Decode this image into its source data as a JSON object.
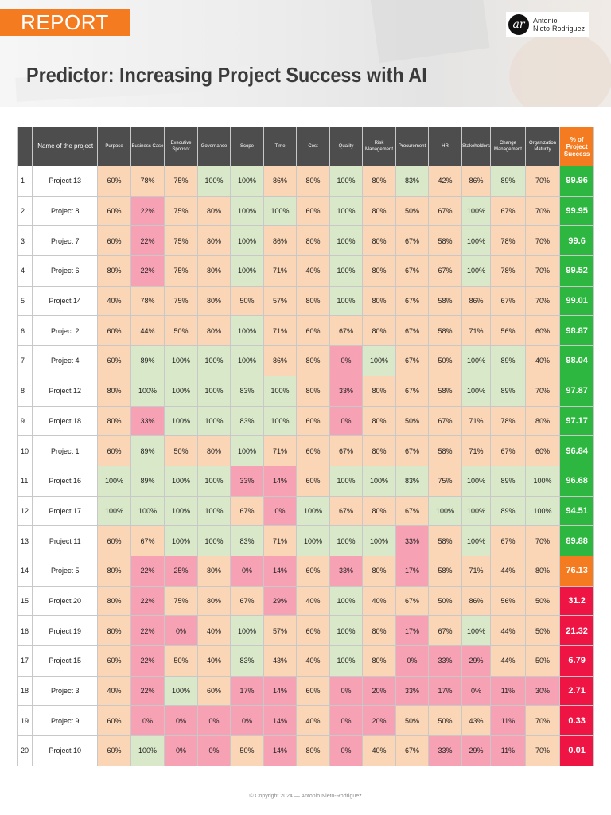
{
  "header": {
    "tag": "REPORT",
    "brand_logo": "ar",
    "brand_name_line1": "Antonio",
    "brand_name_line2": "Nieto-Rodriguez",
    "title": "Predictor: Increasing Project Success with AI"
  },
  "columns": {
    "index": "",
    "name": "Name of the project",
    "criteria": [
      "Purpose",
      "Business Case",
      "Executive Sponsor",
      "Governance",
      "Scope",
      "Time",
      "Cost",
      "Quality",
      "Risk Management",
      "Procurement",
      "HR",
      "Stakeholders",
      "Change Management",
      "Organization Maturity"
    ],
    "success": "% of Project Success"
  },
  "colors": {
    "header_bg": "#4d4d4d",
    "report_tag_bg": "#f47b20",
    "cell_green": "#d9e8c8",
    "cell_orange": "#fad6b6",
    "cell_pink": "#f7a2b4",
    "success_green": "#2db640",
    "success_orange": "#f47b20",
    "success_red": "#ee1443"
  },
  "rows": [
    {
      "idx": "1",
      "name": "Project 13",
      "cells": [
        [
          "60%",
          "o"
        ],
        [
          "78%",
          "o"
        ],
        [
          "75%",
          "o"
        ],
        [
          "100%",
          "g"
        ],
        [
          "100%",
          "g"
        ],
        [
          "86%",
          "o"
        ],
        [
          "80%",
          "o"
        ],
        [
          "100%",
          "g"
        ],
        [
          "80%",
          "o"
        ],
        [
          "83%",
          "g"
        ],
        [
          "42%",
          "o"
        ],
        [
          "86%",
          "o"
        ],
        [
          "89%",
          "g"
        ],
        [
          "70%",
          "o"
        ]
      ],
      "pct": "99.96",
      "pct_c": "g"
    },
    {
      "idx": "2",
      "name": "Project 8",
      "cells": [
        [
          "60%",
          "o"
        ],
        [
          "22%",
          "p"
        ],
        [
          "75%",
          "o"
        ],
        [
          "80%",
          "o"
        ],
        [
          "100%",
          "g"
        ],
        [
          "100%",
          "g"
        ],
        [
          "60%",
          "o"
        ],
        [
          "100%",
          "g"
        ],
        [
          "80%",
          "o"
        ],
        [
          "50%",
          "o"
        ],
        [
          "67%",
          "o"
        ],
        [
          "100%",
          "g"
        ],
        [
          "67%",
          "o"
        ],
        [
          "70%",
          "o"
        ]
      ],
      "pct": "99.95",
      "pct_c": "g"
    },
    {
      "idx": "3",
      "name": "Project 7",
      "cells": [
        [
          "60%",
          "o"
        ],
        [
          "22%",
          "p"
        ],
        [
          "75%",
          "o"
        ],
        [
          "80%",
          "o"
        ],
        [
          "100%",
          "g"
        ],
        [
          "86%",
          "o"
        ],
        [
          "80%",
          "o"
        ],
        [
          "100%",
          "g"
        ],
        [
          "80%",
          "o"
        ],
        [
          "67%",
          "o"
        ],
        [
          "58%",
          "o"
        ],
        [
          "100%",
          "g"
        ],
        [
          "78%",
          "o"
        ],
        [
          "70%",
          "o"
        ]
      ],
      "pct": "99.6",
      "pct_c": "g"
    },
    {
      "idx": "4",
      "name": "Project 6",
      "cells": [
        [
          "80%",
          "o"
        ],
        [
          "22%",
          "p"
        ],
        [
          "75%",
          "o"
        ],
        [
          "80%",
          "o"
        ],
        [
          "100%",
          "g"
        ],
        [
          "71%",
          "o"
        ],
        [
          "40%",
          "o"
        ],
        [
          "100%",
          "g"
        ],
        [
          "80%",
          "o"
        ],
        [
          "67%",
          "o"
        ],
        [
          "67%",
          "o"
        ],
        [
          "100%",
          "g"
        ],
        [
          "78%",
          "o"
        ],
        [
          "70%",
          "o"
        ]
      ],
      "pct": "99.52",
      "pct_c": "g"
    },
    {
      "idx": "5",
      "name": "Project 14",
      "cells": [
        [
          "40%",
          "o"
        ],
        [
          "78%",
          "o"
        ],
        [
          "75%",
          "o"
        ],
        [
          "80%",
          "o"
        ],
        [
          "50%",
          "o"
        ],
        [
          "57%",
          "o"
        ],
        [
          "80%",
          "o"
        ],
        [
          "100%",
          "g"
        ],
        [
          "80%",
          "o"
        ],
        [
          "67%",
          "o"
        ],
        [
          "58%",
          "o"
        ],
        [
          "86%",
          "o"
        ],
        [
          "67%",
          "o"
        ],
        [
          "70%",
          "o"
        ]
      ],
      "pct": "99.01",
      "pct_c": "g"
    },
    {
      "idx": "6",
      "name": "Project 2",
      "cells": [
        [
          "60%",
          "o"
        ],
        [
          "44%",
          "o"
        ],
        [
          "50%",
          "o"
        ],
        [
          "80%",
          "o"
        ],
        [
          "100%",
          "g"
        ],
        [
          "71%",
          "o"
        ],
        [
          "60%",
          "o"
        ],
        [
          "67%",
          "o"
        ],
        [
          "80%",
          "o"
        ],
        [
          "67%",
          "o"
        ],
        [
          "58%",
          "o"
        ],
        [
          "71%",
          "o"
        ],
        [
          "56%",
          "o"
        ],
        [
          "60%",
          "o"
        ]
      ],
      "pct": "98.87",
      "pct_c": "g"
    },
    {
      "idx": "7",
      "name": "Project 4",
      "cells": [
        [
          "60%",
          "o"
        ],
        [
          "89%",
          "g"
        ],
        [
          "100%",
          "g"
        ],
        [
          "100%",
          "g"
        ],
        [
          "100%",
          "g"
        ],
        [
          "86%",
          "o"
        ],
        [
          "80%",
          "o"
        ],
        [
          "0%",
          "p"
        ],
        [
          "100%",
          "g"
        ],
        [
          "67%",
          "o"
        ],
        [
          "50%",
          "o"
        ],
        [
          "100%",
          "g"
        ],
        [
          "89%",
          "g"
        ],
        [
          "40%",
          "o"
        ]
      ],
      "pct": "98.04",
      "pct_c": "g"
    },
    {
      "idx": "8",
      "name": "Project 12",
      "cells": [
        [
          "80%",
          "o"
        ],
        [
          "100%",
          "g"
        ],
        [
          "100%",
          "g"
        ],
        [
          "100%",
          "g"
        ],
        [
          "83%",
          "g"
        ],
        [
          "100%",
          "g"
        ],
        [
          "80%",
          "o"
        ],
        [
          "33%",
          "p"
        ],
        [
          "80%",
          "o"
        ],
        [
          "67%",
          "o"
        ],
        [
          "58%",
          "o"
        ],
        [
          "100%",
          "g"
        ],
        [
          "89%",
          "g"
        ],
        [
          "70%",
          "o"
        ]
      ],
      "pct": "97.87",
      "pct_c": "g"
    },
    {
      "idx": "9",
      "name": "Project 18",
      "cells": [
        [
          "80%",
          "o"
        ],
        [
          "33%",
          "p"
        ],
        [
          "100%",
          "g"
        ],
        [
          "100%",
          "g"
        ],
        [
          "83%",
          "g"
        ],
        [
          "100%",
          "g"
        ],
        [
          "60%",
          "o"
        ],
        [
          "0%",
          "p"
        ],
        [
          "80%",
          "o"
        ],
        [
          "50%",
          "o"
        ],
        [
          "67%",
          "o"
        ],
        [
          "71%",
          "o"
        ],
        [
          "78%",
          "o"
        ],
        [
          "80%",
          "o"
        ]
      ],
      "pct": "97.17",
      "pct_c": "g"
    },
    {
      "idx": "10",
      "name": "Project 1",
      "cells": [
        [
          "60%",
          "o"
        ],
        [
          "89%",
          "g"
        ],
        [
          "50%",
          "o"
        ],
        [
          "80%",
          "o"
        ],
        [
          "100%",
          "g"
        ],
        [
          "71%",
          "o"
        ],
        [
          "60%",
          "o"
        ],
        [
          "67%",
          "o"
        ],
        [
          "80%",
          "o"
        ],
        [
          "67%",
          "o"
        ],
        [
          "58%",
          "o"
        ],
        [
          "71%",
          "o"
        ],
        [
          "67%",
          "o"
        ],
        [
          "60%",
          "o"
        ]
      ],
      "pct": "96.84",
      "pct_c": "g"
    },
    {
      "idx": "11",
      "name": "Project 16",
      "cells": [
        [
          "100%",
          "g"
        ],
        [
          "89%",
          "g"
        ],
        [
          "100%",
          "g"
        ],
        [
          "100%",
          "g"
        ],
        [
          "33%",
          "p"
        ],
        [
          "14%",
          "p"
        ],
        [
          "60%",
          "o"
        ],
        [
          "100%",
          "g"
        ],
        [
          "100%",
          "g"
        ],
        [
          "83%",
          "g"
        ],
        [
          "75%",
          "o"
        ],
        [
          "100%",
          "g"
        ],
        [
          "89%",
          "g"
        ],
        [
          "100%",
          "g"
        ]
      ],
      "pct": "96.68",
      "pct_c": "g"
    },
    {
      "idx": "12",
      "name": "Project 17",
      "cells": [
        [
          "100%",
          "g"
        ],
        [
          "100%",
          "g"
        ],
        [
          "100%",
          "g"
        ],
        [
          "100%",
          "g"
        ],
        [
          "67%",
          "o"
        ],
        [
          "0%",
          "p"
        ],
        [
          "100%",
          "g"
        ],
        [
          "67%",
          "o"
        ],
        [
          "80%",
          "o"
        ],
        [
          "67%",
          "o"
        ],
        [
          "100%",
          "g"
        ],
        [
          "100%",
          "g"
        ],
        [
          "89%",
          "g"
        ],
        [
          "100%",
          "g"
        ]
      ],
      "pct": "94.51",
      "pct_c": "g"
    },
    {
      "idx": "13",
      "name": "Project 11",
      "cells": [
        [
          "60%",
          "o"
        ],
        [
          "67%",
          "o"
        ],
        [
          "100%",
          "g"
        ],
        [
          "100%",
          "g"
        ],
        [
          "83%",
          "g"
        ],
        [
          "71%",
          "o"
        ],
        [
          "100%",
          "g"
        ],
        [
          "100%",
          "g"
        ],
        [
          "100%",
          "g"
        ],
        [
          "33%",
          "p"
        ],
        [
          "58%",
          "o"
        ],
        [
          "100%",
          "g"
        ],
        [
          "67%",
          "o"
        ],
        [
          "70%",
          "o"
        ]
      ],
      "pct": "89.88",
      "pct_c": "g"
    },
    {
      "idx": "14",
      "name": "Project 5",
      "cells": [
        [
          "80%",
          "o"
        ],
        [
          "22%",
          "p"
        ],
        [
          "25%",
          "p"
        ],
        [
          "80%",
          "o"
        ],
        [
          "0%",
          "p"
        ],
        [
          "14%",
          "p"
        ],
        [
          "60%",
          "o"
        ],
        [
          "33%",
          "p"
        ],
        [
          "80%",
          "o"
        ],
        [
          "17%",
          "p"
        ],
        [
          "58%",
          "o"
        ],
        [
          "71%",
          "o"
        ],
        [
          "44%",
          "o"
        ],
        [
          "80%",
          "o"
        ]
      ],
      "pct": "76.13",
      "pct_c": "o"
    },
    {
      "idx": "15",
      "name": "Project 20",
      "cells": [
        [
          "80%",
          "o"
        ],
        [
          "22%",
          "p"
        ],
        [
          "75%",
          "o"
        ],
        [
          "80%",
          "o"
        ],
        [
          "67%",
          "o"
        ],
        [
          "29%",
          "p"
        ],
        [
          "40%",
          "o"
        ],
        [
          "100%",
          "g"
        ],
        [
          "40%",
          "o"
        ],
        [
          "67%",
          "o"
        ],
        [
          "50%",
          "o"
        ],
        [
          "86%",
          "o"
        ],
        [
          "56%",
          "o"
        ],
        [
          "50%",
          "o"
        ]
      ],
      "pct": "31.2",
      "pct_c": "r"
    },
    {
      "idx": "16",
      "name": "Project 19",
      "cells": [
        [
          "80%",
          "o"
        ],
        [
          "22%",
          "p"
        ],
        [
          "0%",
          "p"
        ],
        [
          "40%",
          "o"
        ],
        [
          "100%",
          "g"
        ],
        [
          "57%",
          "o"
        ],
        [
          "60%",
          "o"
        ],
        [
          "100%",
          "g"
        ],
        [
          "80%",
          "o"
        ],
        [
          "17%",
          "p"
        ],
        [
          "67%",
          "o"
        ],
        [
          "100%",
          "g"
        ],
        [
          "44%",
          "o"
        ],
        [
          "50%",
          "o"
        ]
      ],
      "pct": "21.32",
      "pct_c": "r"
    },
    {
      "idx": "17",
      "name": "Project 15",
      "cells": [
        [
          "60%",
          "o"
        ],
        [
          "22%",
          "p"
        ],
        [
          "50%",
          "o"
        ],
        [
          "40%",
          "o"
        ],
        [
          "83%",
          "g"
        ],
        [
          "43%",
          "o"
        ],
        [
          "40%",
          "o"
        ],
        [
          "100%",
          "g"
        ],
        [
          "80%",
          "o"
        ],
        [
          "0%",
          "p"
        ],
        [
          "33%",
          "p"
        ],
        [
          "29%",
          "p"
        ],
        [
          "44%",
          "o"
        ],
        [
          "50%",
          "o"
        ]
      ],
      "pct": "6.79",
      "pct_c": "r"
    },
    {
      "idx": "18",
      "name": "Project 3",
      "cells": [
        [
          "40%",
          "o"
        ],
        [
          "22%",
          "p"
        ],
        [
          "100%",
          "g"
        ],
        [
          "60%",
          "o"
        ],
        [
          "17%",
          "p"
        ],
        [
          "14%",
          "p"
        ],
        [
          "60%",
          "o"
        ],
        [
          "0%",
          "p"
        ],
        [
          "20%",
          "p"
        ],
        [
          "33%",
          "p"
        ],
        [
          "17%",
          "p"
        ],
        [
          "0%",
          "p"
        ],
        [
          "11%",
          "p"
        ],
        [
          "30%",
          "p"
        ]
      ],
      "pct": "2.71",
      "pct_c": "r"
    },
    {
      "idx": "19",
      "name": "Project 9",
      "cells": [
        [
          "60%",
          "o"
        ],
        [
          "0%",
          "p"
        ],
        [
          "0%",
          "p"
        ],
        [
          "0%",
          "p"
        ],
        [
          "0%",
          "p"
        ],
        [
          "14%",
          "p"
        ],
        [
          "40%",
          "o"
        ],
        [
          "0%",
          "p"
        ],
        [
          "20%",
          "p"
        ],
        [
          "50%",
          "o"
        ],
        [
          "50%",
          "o"
        ],
        [
          "43%",
          "o"
        ],
        [
          "11%",
          "p"
        ],
        [
          "70%",
          "o"
        ]
      ],
      "pct": "0.33",
      "pct_c": "r"
    },
    {
      "idx": "20",
      "name": "Project 10",
      "cells": [
        [
          "60%",
          "o"
        ],
        [
          "100%",
          "g"
        ],
        [
          "0%",
          "p"
        ],
        [
          "0%",
          "p"
        ],
        [
          "50%",
          "o"
        ],
        [
          "14%",
          "p"
        ],
        [
          "80%",
          "o"
        ],
        [
          "0%",
          "p"
        ],
        [
          "40%",
          "o"
        ],
        [
          "67%",
          "o"
        ],
        [
          "33%",
          "p"
        ],
        [
          "29%",
          "p"
        ],
        [
          "11%",
          "p"
        ],
        [
          "70%",
          "o"
        ]
      ],
      "pct": "0.01",
      "pct_c": "r"
    }
  ],
  "footer": {
    "copyright": "© Copyright 2024 — Antonio Nieto-Rodriguez"
  }
}
